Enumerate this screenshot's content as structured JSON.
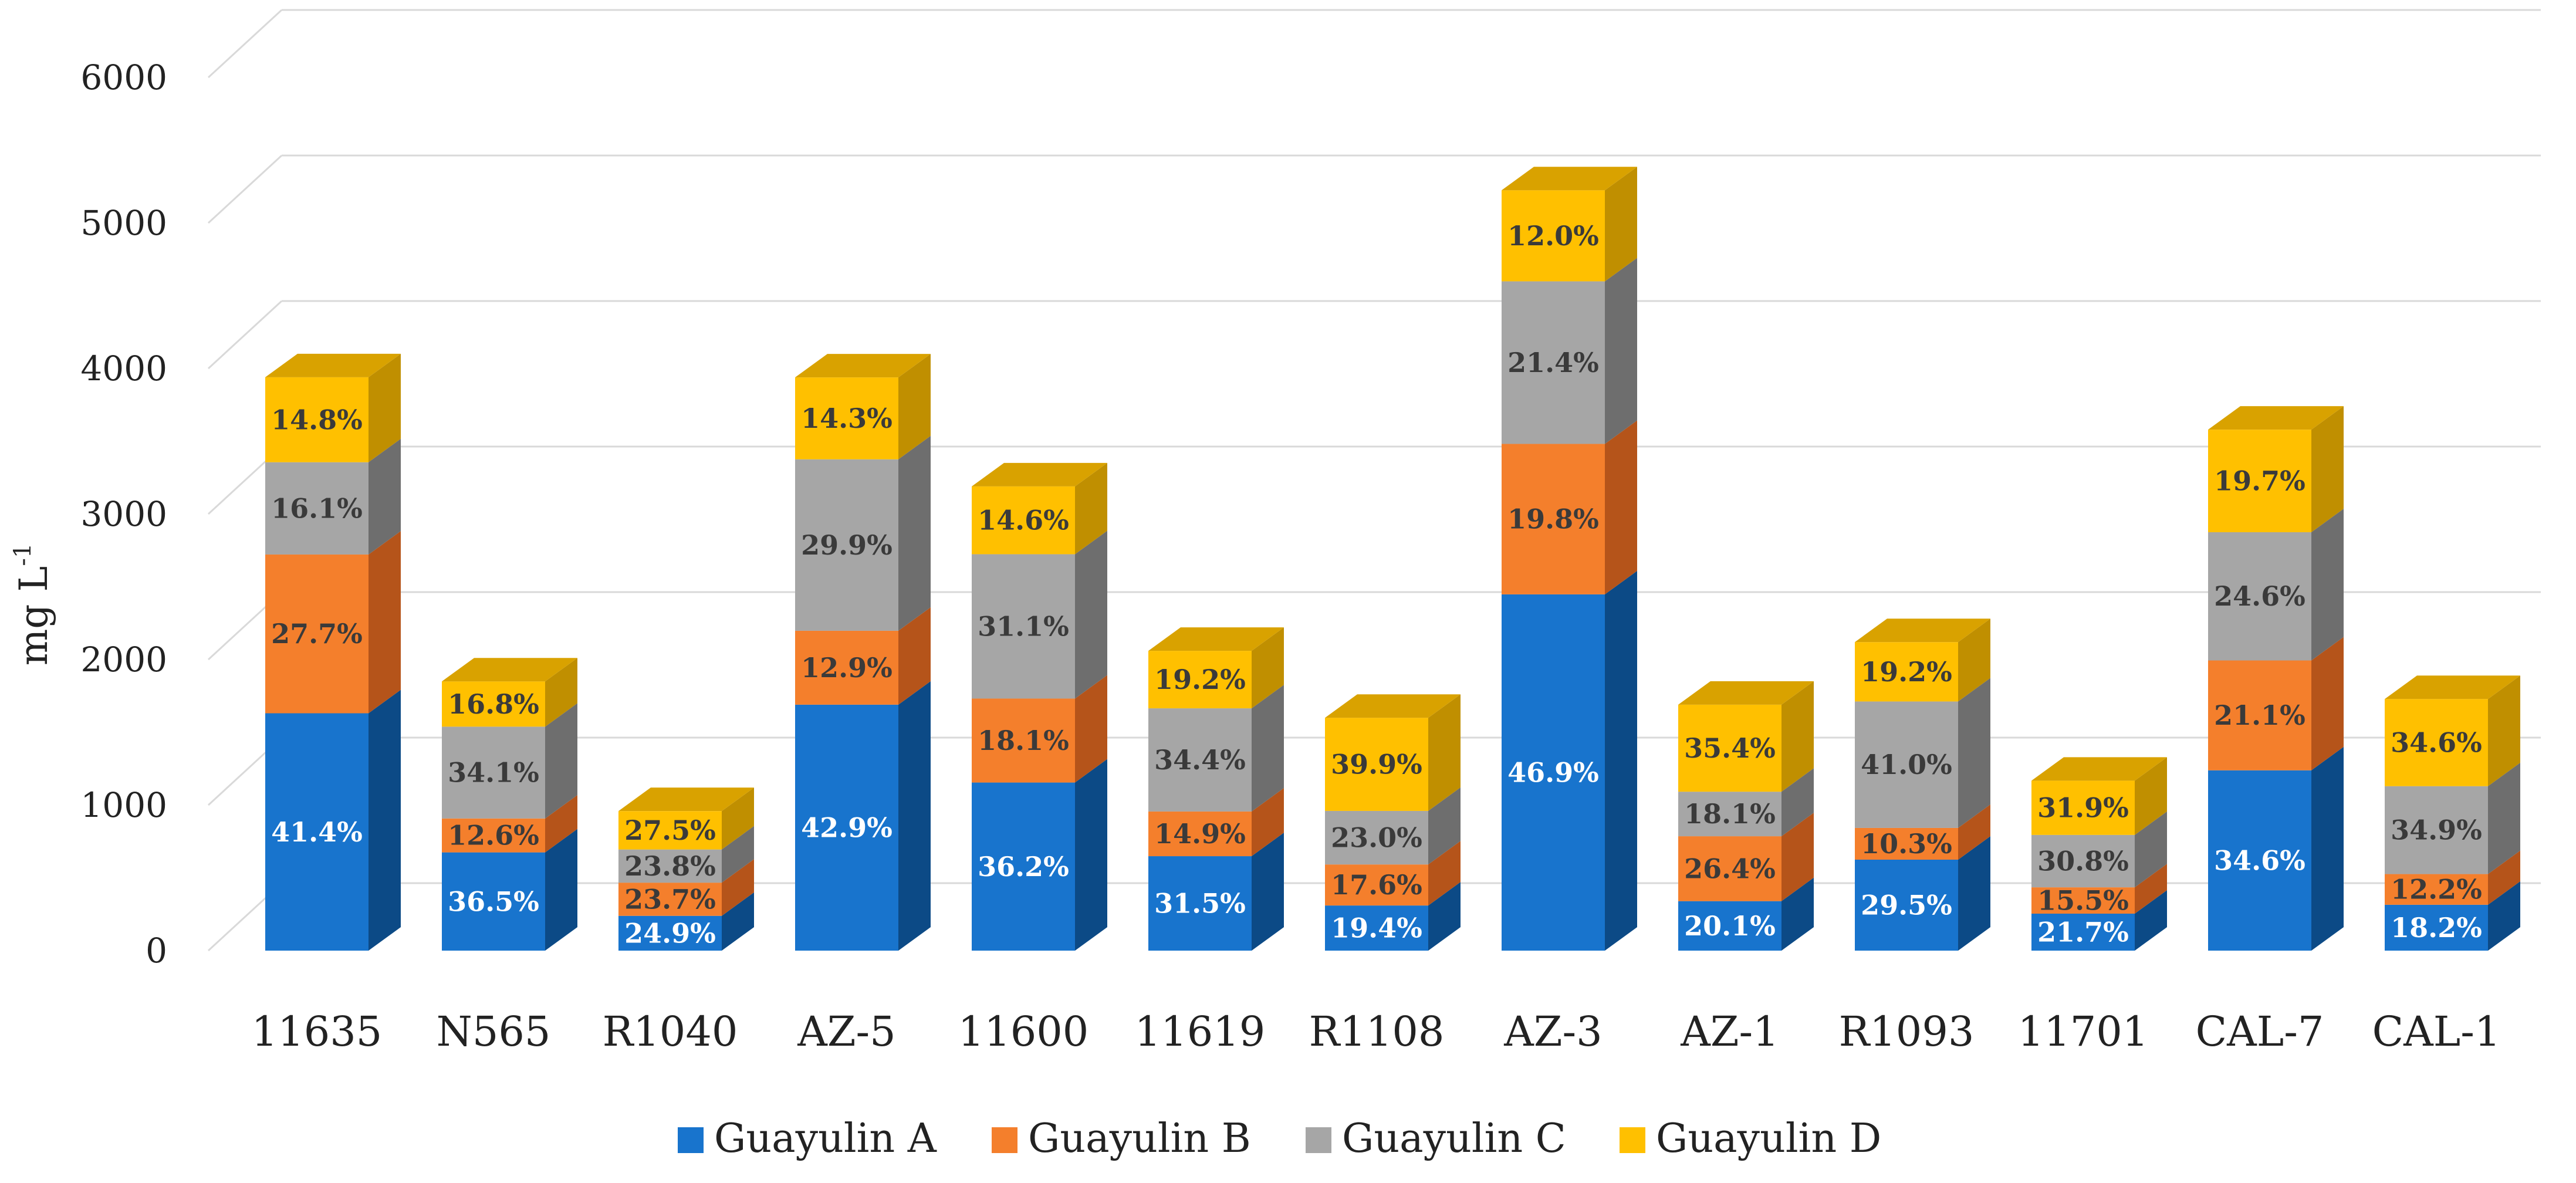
{
  "chart_data": {
    "type": "bar",
    "subtype": "stacked-3d",
    "title": "",
    "xlabel": "",
    "ylabel": "mg L",
    "ylabel_superscript": "-1",
    "ylim": [
      0,
      6000
    ],
    "yticks": [
      "0",
      "1000",
      "2000",
      "3000",
      "4000",
      "5000",
      "6000"
    ],
    "grid": true,
    "legend_position": "bottom",
    "categories": [
      "11635",
      "N565",
      "R1040",
      "AZ-5",
      "11600",
      "11619",
      "R1108",
      "AZ-3",
      "AZ-1",
      "R1093",
      "11701",
      "CAL-7",
      "CAL-1"
    ],
    "totals": [
      3940,
      1850,
      960,
      3940,
      3190,
      2060,
      1600,
      5220,
      1690,
      2120,
      1170,
      3580,
      1730
    ],
    "series": [
      {
        "name": "Guayulin A",
        "color": "#1874CD",
        "side_color": "#0C4A86",
        "top_color": "#1A6CC0",
        "label_color": "#ffffff",
        "values": [
          1631,
          675,
          239,
          1690,
          1155,
          649,
          310,
          2448,
          340,
          625,
          254,
          1239,
          315
        ],
        "labels": [
          "41.4%",
          "36.5%",
          "24.9%",
          "42.9%",
          "36.2%",
          "31.5%",
          "19.4%",
          "46.9%",
          "20.1%",
          "29.5%",
          "21.7%",
          "34.6%",
          "18.2%"
        ]
      },
      {
        "name": "Guayulin B",
        "color": "#F47F2C",
        "side_color": "#B5541A",
        "top_color": "#E57425",
        "label_color": "#3a3a3a",
        "values": [
          1091,
          233,
          228,
          508,
          577,
          307,
          282,
          1034,
          446,
          218,
          181,
          755,
          211
        ],
        "labels": [
          "27.7%",
          "12.6%",
          "23.7%",
          "12.9%",
          "18.1%",
          "14.9%",
          "17.6%",
          "19.8%",
          "26.4%",
          "10.3%",
          "15.5%",
          "21.1%",
          "12.2%"
        ]
      },
      {
        "name": "Guayulin C",
        "color": "#A6A6A6",
        "side_color": "#6E6E6E",
        "top_color": "#9A9A9A",
        "label_color": "#3a3a3a",
        "values": [
          634,
          631,
          228,
          1178,
          992,
          709,
          368,
          1117,
          306,
          869,
          360,
          881,
          604
        ],
        "labels": [
          "16.1%",
          "34.1%",
          "23.8%",
          "29.9%",
          "31.1%",
          "34.4%",
          "23.0%",
          "21.4%",
          "18.1%",
          "41.0%",
          "30.8%",
          "24.6%",
          "34.9%"
        ]
      },
      {
        "name": "Guayulin D",
        "color": "#FFC000",
        "side_color": "#C08F00",
        "top_color": "#D9A200",
        "label_color": "#3a3a3a",
        "values": [
          584,
          311,
          264,
          563,
          466,
          395,
          640,
          626,
          598,
          408,
          373,
          705,
          599
        ],
        "labels": [
          "14.8%",
          "16.8%",
          "27.5%",
          "14.3%",
          "14.6%",
          "19.2%",
          "39.9%",
          "12.0%",
          "35.4%",
          "19.2%",
          "31.9%",
          "19.7%",
          "34.6%"
        ]
      }
    ]
  }
}
